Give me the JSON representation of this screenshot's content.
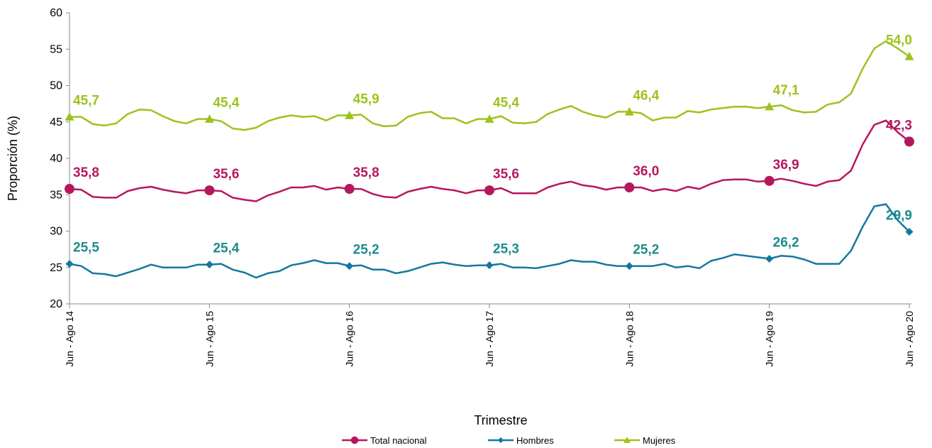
{
  "chart_data": {
    "type": "line",
    "xlabel": "Trimestre",
    "ylabel": "Proporción  (%)",
    "ylim": [
      20,
      60
    ],
    "yticks": [
      "20",
      "25",
      "30",
      "35",
      "40",
      "45",
      "50",
      "55",
      "60"
    ],
    "tick_labels": [
      "Jun - Ago 14",
      "Jun - Ago 15",
      "Jun - Ago 16",
      "Jun - Ago 17",
      "Jun - Ago 18",
      "Jun - Ago 19",
      "Jun - Ago 20"
    ],
    "grid": false,
    "legend_position": "bottom",
    "series": [
      {
        "name": "Total nacional",
        "color": "#b5175f",
        "marker": "circle",
        "values": [
          35.8,
          35.7,
          34.7,
          34.6,
          34.6,
          35.5,
          35.9,
          36.1,
          35.7,
          35.4,
          35.2,
          35.6,
          35.6,
          35.5,
          34.6,
          34.3,
          34.1,
          34.9,
          35.4,
          36.0,
          36.0,
          36.2,
          35.7,
          36.0,
          35.8,
          35.8,
          35.1,
          34.7,
          34.6,
          35.4,
          35.8,
          36.1,
          35.8,
          35.6,
          35.2,
          35.6,
          35.6,
          35.9,
          35.2,
          35.2,
          35.2,
          36.0,
          36.5,
          36.8,
          36.3,
          36.1,
          35.7,
          36.0,
          36.0,
          36.0,
          35.5,
          35.8,
          35.5,
          36.1,
          35.8,
          36.5,
          37.0,
          37.1,
          37.1,
          36.8,
          36.9,
          37.2,
          36.9,
          36.5,
          36.2,
          36.8,
          37.0,
          38.3,
          41.9,
          44.6,
          45.2,
          43.6,
          42.3
        ],
        "labels": [
          {
            "index": 0,
            "text": "35,8"
          },
          {
            "index": 12,
            "text": "35,6"
          },
          {
            "index": 24,
            "text": "35,8"
          },
          {
            "index": 36,
            "text": "35,6"
          },
          {
            "index": 48,
            "text": "36,0"
          },
          {
            "index": 60,
            "text": "36,9"
          },
          {
            "index": 72,
            "text": "42,3"
          }
        ]
      },
      {
        "name": "Hombres",
        "color": "#1478a0",
        "label_color": "#1c8c8c",
        "marker": "diamond",
        "values": [
          25.5,
          25.2,
          24.2,
          24.1,
          23.8,
          24.3,
          24.8,
          25.4,
          25.0,
          25.0,
          25.0,
          25.4,
          25.4,
          25.5,
          24.7,
          24.3,
          23.6,
          24.2,
          24.5,
          25.3,
          25.6,
          26.0,
          25.6,
          25.6,
          25.2,
          25.3,
          24.7,
          24.7,
          24.2,
          24.5,
          25.0,
          25.5,
          25.7,
          25.4,
          25.2,
          25.3,
          25.3,
          25.5,
          25.0,
          25.0,
          24.9,
          25.2,
          25.5,
          26.0,
          25.8,
          25.8,
          25.4,
          25.2,
          25.2,
          25.2,
          25.2,
          25.5,
          25.0,
          25.2,
          24.9,
          25.9,
          26.3,
          26.8,
          26.6,
          26.4,
          26.2,
          26.6,
          26.5,
          26.1,
          25.5,
          25.5,
          25.5,
          27.3,
          30.6,
          33.4,
          33.7,
          31.5,
          29.9
        ],
        "labels": [
          {
            "index": 0,
            "text": "25,5"
          },
          {
            "index": 12,
            "text": "25,4"
          },
          {
            "index": 24,
            "text": "25,2"
          },
          {
            "index": 36,
            "text": "25,3"
          },
          {
            "index": 48,
            "text": "25,2"
          },
          {
            "index": 60,
            "text": "26,2"
          },
          {
            "index": 72,
            "text": "29,9"
          }
        ]
      },
      {
        "name": "Mujeres",
        "color": "#9dc21c",
        "marker": "triangle",
        "values": [
          45.7,
          45.7,
          44.7,
          44.5,
          44.8,
          46.1,
          46.7,
          46.6,
          45.8,
          45.1,
          44.8,
          45.4,
          45.4,
          45.1,
          44.1,
          43.9,
          44.2,
          45.1,
          45.6,
          45.9,
          45.7,
          45.8,
          45.2,
          45.9,
          45.9,
          46.0,
          44.8,
          44.4,
          44.5,
          45.7,
          46.2,
          46.4,
          45.5,
          45.5,
          44.8,
          45.4,
          45.4,
          45.8,
          44.9,
          44.8,
          45.0,
          46.1,
          46.7,
          47.2,
          46.4,
          45.9,
          45.6,
          46.4,
          46.4,
          46.2,
          45.2,
          45.6,
          45.6,
          46.5,
          46.3,
          46.7,
          46.9,
          47.1,
          47.1,
          46.9,
          47.1,
          47.3,
          46.6,
          46.3,
          46.4,
          47.4,
          47.7,
          48.9,
          52.3,
          55.1,
          56.1,
          55.1,
          54.0
        ],
        "labels": [
          {
            "index": 0,
            "text": "45,7"
          },
          {
            "index": 12,
            "text": "45,4"
          },
          {
            "index": 24,
            "text": "45,9"
          },
          {
            "index": 36,
            "text": "45,4"
          },
          {
            "index": 48,
            "text": "46,4"
          },
          {
            "index": 60,
            "text": "47,1"
          },
          {
            "index": 72,
            "text": "54,0"
          }
        ]
      }
    ]
  }
}
